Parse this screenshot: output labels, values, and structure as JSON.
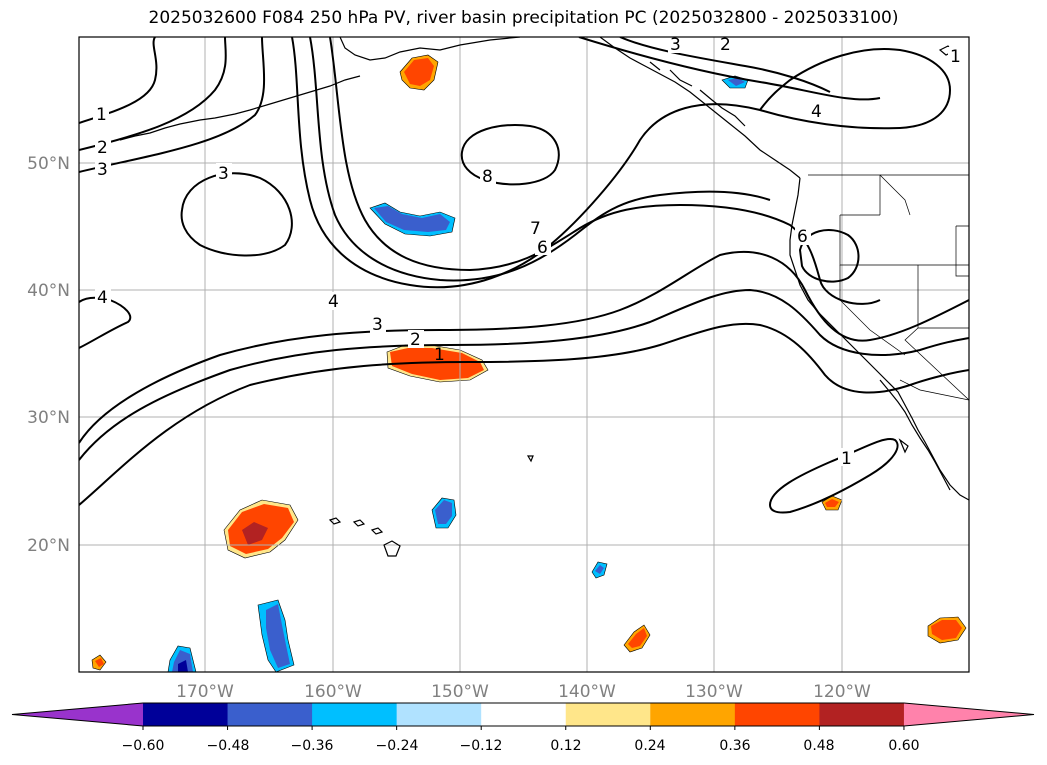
{
  "title": "2025032600 F084 250 hPa PV, river basin precipitation PC (2025032800 - 2025033100)",
  "lon_labels": [
    "170°W",
    "160°W",
    "150°W",
    "140°W",
    "130°W",
    "120°W"
  ],
  "lat_labels": [
    "50°N",
    "40°N",
    "30°N",
    "20°N"
  ],
  "contour_labels": [
    "1",
    "2",
    "3",
    "3",
    "4",
    "8",
    "7",
    "6",
    "6",
    "4",
    "3",
    "2",
    "1",
    "4",
    "3",
    "2",
    "1",
    "1"
  ],
  "colorbar": {
    "ticks": [
      "−0.60",
      "−0.48",
      "−0.36",
      "−0.24",
      "−0.12",
      "0.12",
      "0.24",
      "0.36",
      "0.48",
      "0.60"
    ],
    "colors": [
      "#9933cc",
      "#000099",
      "#3a5fcd",
      "#00bfff",
      "#b0e2ff",
      "#ffffff",
      "#ffe68a",
      "#ffa500",
      "#ff4500",
      "#b22222",
      "#ff82ab"
    ]
  }
}
